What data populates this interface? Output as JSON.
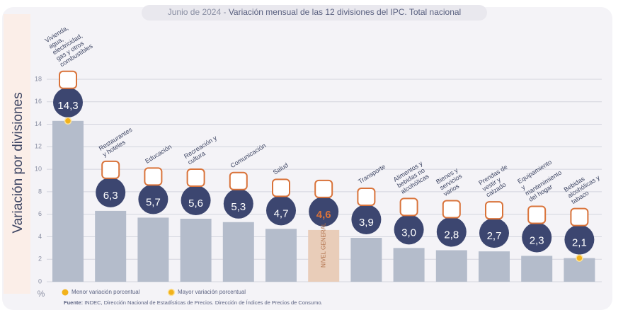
{
  "chart_data": {
    "type": "bar",
    "title_prefix": "Junio de 2024 - ",
    "title": "Variación mensual de las 12 divisiones del IPC. Total nacional",
    "y_label": "Variación por divisiones",
    "unit_label": "%",
    "categories": [
      "Vivienda, agua, electricidad, gas y otros combustibles",
      "Restaurantes y hoteles",
      "Educación",
      "Recreación y cultura",
      "Comunicación",
      "Salud",
      "NIVEL GENERAL",
      "Transporte",
      "Alimentos y bebidas no alcohólicas",
      "Bienes y servicios varios",
      "Prendas de vestir y calzado",
      "Equipamiento y mantenimiento del hogar",
      "Bebidas alcohólicas y tabaco"
    ],
    "values": [
      14.3,
      6.3,
      5.7,
      5.6,
      5.3,
      4.7,
      4.6,
      3.9,
      3.0,
      2.8,
      2.7,
      2.3,
      2.1
    ],
    "value_labels": [
      "14,3",
      "6,3",
      "5,7",
      "5,6",
      "5,3",
      "4,7",
      "4,6",
      "3,9",
      "3,0",
      "2,8",
      "2,7",
      "2,3",
      "2,1"
    ],
    "colors": [
      "#b4bccb",
      "#b4bccb",
      "#b4bccb",
      "#b4bccb",
      "#b4bccb",
      "#b4bccb",
      "#e9cdb9",
      "#b4bccb",
      "#b4bccb",
      "#b4bccb",
      "#b4bccb",
      "#b4bccb",
      "#b4bccb"
    ],
    "value_label_colors": [
      "#ffffff",
      "#ffffff",
      "#ffffff",
      "#ffffff",
      "#ffffff",
      "#ffffff",
      "#d9733a",
      "#ffffff",
      "#ffffff",
      "#ffffff",
      "#ffffff",
      "#ffffff",
      "#ffffff"
    ],
    "ylim": [
      0,
      18
    ],
    "yticks": [
      0,
      2,
      4,
      6,
      8,
      10,
      12,
      14,
      16,
      18
    ],
    "grid": true,
    "legend": [
      {
        "label": "Menor variación porcentual",
        "color": "#f2b21b"
      },
      {
        "label": "Mayor variación porcentual",
        "color": "#f2b21b"
      }
    ],
    "source_label": "Fuente:",
    "source": "INDEC, Dirección Nacional de Estadísticas de Precios. Dirección de Índices de Precios de Consumo."
  }
}
